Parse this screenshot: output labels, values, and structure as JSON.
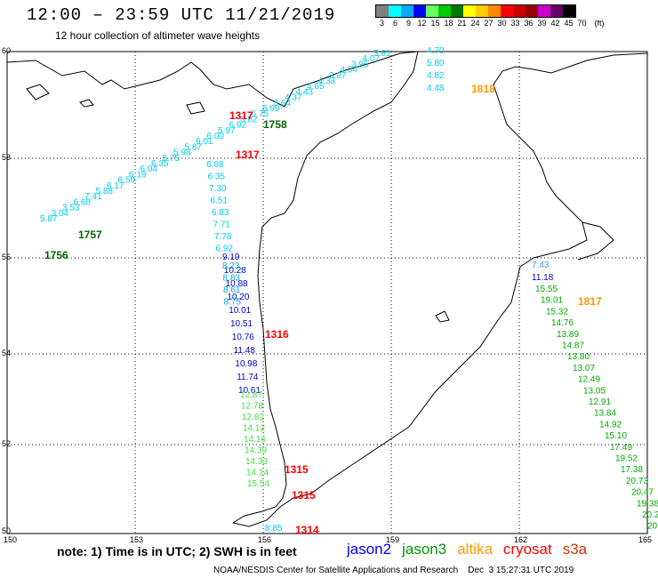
{
  "header": {
    "title": "12:00 – 23:59 UTC 11/21/2019",
    "subtitle": "12 hour collection of altimeter wave heights"
  },
  "legend": {
    "unit": "(ft)",
    "bins": [
      {
        "label": "3",
        "color": "#808080"
      },
      {
        "label": "6",
        "color": "#00ffff"
      },
      {
        "label": "9",
        "color": "#00aaff"
      },
      {
        "label": "12",
        "color": "#0000ff"
      },
      {
        "label": "15",
        "color": "#66ff66"
      },
      {
        "label": "18",
        "color": "#00cc00"
      },
      {
        "label": "21",
        "color": "#007700"
      },
      {
        "label": "24",
        "color": "#ffff00"
      },
      {
        "label": "27",
        "color": "#ffcc00"
      },
      {
        "label": "30",
        "color": "#ff8800"
      },
      {
        "label": "33",
        "color": "#ff0000"
      },
      {
        "label": "36",
        "color": "#cc0000"
      },
      {
        "label": "39",
        "color": "#990000"
      },
      {
        "label": "42",
        "color": "#cc00cc"
      },
      {
        "label": "45",
        "color": "#660066"
      },
      {
        "label": "70",
        "color": "#000000"
      }
    ]
  },
  "axes": {
    "x_ticks": [
      "150",
      "153",
      "156",
      "159",
      "162",
      "165"
    ],
    "y_ticks": [
      "60",
      "58",
      "56",
      "54",
      "52",
      "50"
    ]
  },
  "annotations": {
    "note": "note: 1) Time is in UTC; 2) SWH is in feet",
    "satellites": [
      {
        "name": "jason2",
        "color": "#0000ff"
      },
      {
        "name": "jason3",
        "color": "#009900"
      },
      {
        "name": "altika",
        "color": "#ff9900"
      },
      {
        "name": "cryosat",
        "color": "#ff0000"
      },
      {
        "name": "s3a",
        "color": "#cc3300"
      }
    ],
    "footer": "NOAA/NESDIS Center for Satellite Applications and Research    Dec  3 15:27:31 UTC 2019"
  },
  "time_labels": [
    {
      "text": "1317",
      "color": "#ff0000"
    },
    {
      "text": "1758",
      "color": "#006600"
    },
    {
      "text": "1317",
      "color": "#ff0000"
    },
    {
      "text": "1757",
      "color": "#006600"
    },
    {
      "text": "1756",
      "color": "#006600"
    },
    {
      "text": "1316",
      "color": "#ff0000"
    },
    {
      "text": "1315",
      "color": "#ff0000"
    },
    {
      "text": "1315",
      "color": "#ff0000"
    },
    {
      "text": "1314",
      "color": "#ff0000"
    },
    {
      "text": "1818",
      "color": "#ff9900"
    },
    {
      "text": "1817",
      "color": "#ff9900"
    }
  ],
  "tracks": [
    {
      "name": "s3a-northeast",
      "color": "#00ccee",
      "values": [
        "3.61",
        "4.07",
        "3.95",
        "4.04",
        "3.87",
        "4.33",
        "4.65",
        "4.43",
        "4.37",
        "3.64",
        "5.99",
        "6.75",
        "6.82",
        "6.92",
        "5.97",
        "6.00",
        "6.01",
        "5.87",
        "5.98",
        "5.75",
        "6.35",
        "6.04",
        "6.19",
        "6.50",
        "6.17",
        "5.88",
        "7.41",
        "6.68",
        "3.53",
        "3.04",
        "5.87"
      ]
    },
    {
      "name": "altika-north",
      "color": "#00ccee",
      "values": [
        "4.70",
        "5.80",
        "4.82",
        "4.48"
      ]
    },
    {
      "name": "cryosat-west",
      "color": "#00ccee",
      "values": [
        "6.88",
        "6.35",
        "7.30",
        "6.51",
        "6.83",
        "7.71",
        "7.78",
        "6.92"
      ]
    },
    {
      "name": "cryosat-west-blue",
      "color": "#0000cc",
      "values": [
        "9.19",
        "10.28",
        "10.88",
        "10.20",
        "10.01",
        "10.51",
        "10.76",
        "11.48",
        "10.98",
        "11.74",
        "10.61"
      ]
    },
    {
      "name": "cryosat-west-teal",
      "color": "#00aadd",
      "values": [
        "8.23",
        "8.83",
        "8.61",
        "8.75"
      ]
    },
    {
      "name": "cryosat-west-green",
      "color": "#44dd44",
      "values": [
        "12.87",
        "12.78",
        "12.82",
        "14.12",
        "14.16",
        "14.39",
        "14.33",
        "14.14",
        "15.54"
      ]
    },
    {
      "name": "cryosat-south",
      "color": "#00ccee",
      "values": [
        "8.85"
      ]
    },
    {
      "name": "altika-east",
      "color": "#3399ff",
      "values": [
        "7.43"
      ]
    },
    {
      "name": "altika-east-blue",
      "color": "#0000cc",
      "values": [
        "11.18"
      ]
    },
    {
      "name": "altika-east-green",
      "color": "#00aa00",
      "values": [
        "15.55",
        "19.01",
        "15.32",
        "14.76",
        "13.89",
        "14.87",
        "13.80",
        "13.07",
        "12.49",
        "13.05",
        "12.91",
        "13.84",
        "14.92",
        "15.10",
        "17.49",
        "19.52",
        "17.38",
        "20.73",
        "20.47",
        "19.38",
        "20.2",
        "20."
      ]
    }
  ]
}
